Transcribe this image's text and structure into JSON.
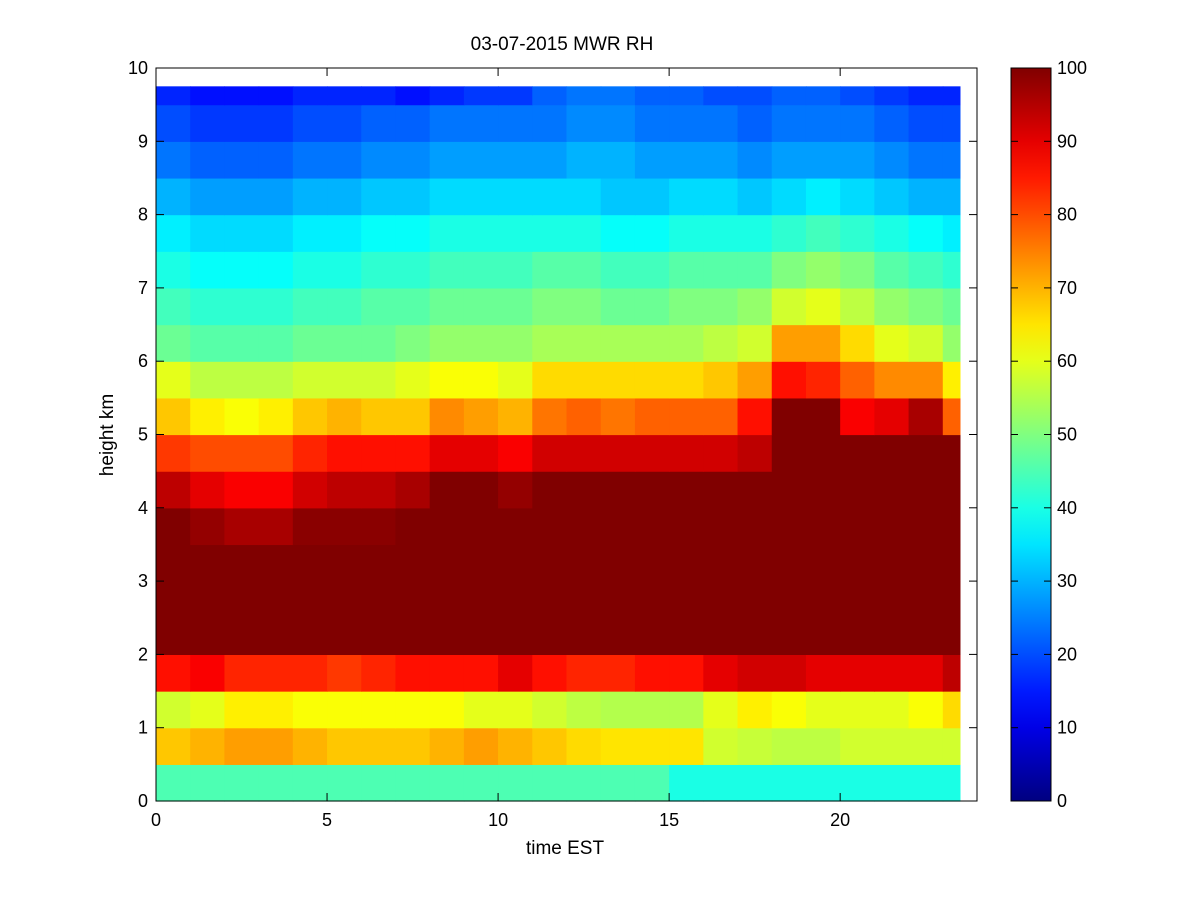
{
  "chart_data": {
    "type": "heatmap",
    "title": "03-07-2015 MWR RH",
    "xlabel": "time EST",
    "ylabel": "height km",
    "xlim": [
      0,
      24
    ],
    "ylim": [
      0,
      10
    ],
    "x_ticks": [
      0,
      5,
      10,
      15,
      20
    ],
    "y_ticks": [
      0,
      1,
      2,
      3,
      4,
      5,
      6,
      7,
      8,
      9,
      10
    ],
    "colorbar": {
      "colormap": "jet",
      "range": [
        0,
        100
      ],
      "ticks": [
        0,
        10,
        20,
        30,
        40,
        50,
        60,
        70,
        80,
        90,
        100
      ]
    },
    "x_extent": [
      0,
      23.5
    ],
    "y_extent": [
      0,
      9.75
    ],
    "x": [
      0,
      1,
      2,
      3,
      4,
      5,
      6,
      7,
      8,
      9,
      10,
      11,
      12,
      13,
      14,
      15,
      16,
      17,
      18,
      19,
      20,
      21,
      22,
      23
    ],
    "heights": [
      0.0,
      0.5,
      1.0,
      1.5,
      2.0,
      2.5,
      3.0,
      3.5,
      4.0,
      4.5,
      5.0,
      5.5,
      6.0,
      6.5,
      7.0,
      7.5,
      8.0,
      8.5,
      9.0,
      9.5
    ],
    "z": [
      [
        45,
        45,
        45,
        45,
        45,
        45,
        45,
        45,
        45,
        45,
        45,
        45,
        45,
        45,
        45,
        40,
        40,
        40,
        40,
        40,
        40,
        40,
        40,
        40
      ],
      [
        68,
        70,
        72,
        72,
        70,
        68,
        68,
        68,
        70,
        72,
        70,
        68,
        66,
        65,
        65,
        65,
        58,
        57,
        56,
        56,
        58,
        58,
        58,
        58
      ],
      [
        58,
        60,
        64,
        64,
        62,
        62,
        62,
        62,
        62,
        60,
        60,
        58,
        56,
        55,
        55,
        55,
        60,
        64,
        62,
        60,
        60,
        60,
        62,
        66
      ],
      [
        86,
        88,
        84,
        84,
        84,
        82,
        84,
        86,
        86,
        86,
        90,
        86,
        84,
        84,
        86,
        86,
        90,
        92,
        92,
        90,
        90,
        90,
        90,
        94
      ],
      [
        100,
        100,
        100,
        100,
        100,
        100,
        100,
        100,
        100,
        100,
        100,
        100,
        100,
        100,
        100,
        100,
        100,
        100,
        100,
        100,
        100,
        100,
        100,
        100
      ],
      [
        100,
        100,
        100,
        100,
        100,
        100,
        100,
        100,
        100,
        100,
        100,
        100,
        100,
        100,
        100,
        100,
        100,
        100,
        100,
        100,
        100,
        100,
        100,
        100
      ],
      [
        100,
        100,
        100,
        100,
        100,
        100,
        100,
        100,
        100,
        100,
        100,
        100,
        100,
        100,
        100,
        100,
        100,
        100,
        100,
        100,
        100,
        100,
        100,
        100
      ],
      [
        100,
        98,
        96,
        96,
        99,
        99,
        99,
        100,
        100,
        100,
        100,
        100,
        100,
        100,
        100,
        100,
        100,
        100,
        100,
        100,
        100,
        100,
        100,
        100
      ],
      [
        94,
        90,
        88,
        88,
        92,
        94,
        94,
        96,
        100,
        100,
        98,
        100,
        100,
        100,
        100,
        100,
        100,
        100,
        100,
        100,
        100,
        100,
        100,
        100
      ],
      [
        82,
        80,
        80,
        80,
        84,
        86,
        86,
        86,
        90,
        90,
        88,
        92,
        92,
        92,
        92,
        92,
        92,
        94,
        100,
        100,
        100,
        100,
        100,
        100
      ],
      [
        68,
        64,
        62,
        64,
        68,
        70,
        68,
        68,
        74,
        72,
        70,
        76,
        78,
        76,
        78,
        78,
        78,
        86,
        100,
        100,
        88,
        90,
        96,
        78
      ],
      [
        60,
        56,
        56,
        56,
        58,
        58,
        58,
        60,
        62,
        62,
        60,
        66,
        66,
        66,
        66,
        66,
        68,
        72,
        86,
        84,
        78,
        74,
        74,
        64
      ],
      [
        48,
        46,
        46,
        46,
        48,
        48,
        48,
        50,
        52,
        52,
        52,
        54,
        54,
        54,
        54,
        54,
        56,
        58,
        72,
        72,
        66,
        60,
        58,
        52
      ],
      [
        44,
        42,
        42,
        42,
        44,
        44,
        46,
        46,
        48,
        48,
        48,
        50,
        50,
        48,
        48,
        50,
        50,
        52,
        58,
        60,
        56,
        52,
        50,
        48
      ],
      [
        40,
        38,
        38,
        38,
        40,
        40,
        42,
        42,
        44,
        44,
        44,
        46,
        46,
        44,
        44,
        46,
        46,
        46,
        50,
        52,
        50,
        46,
        44,
        42
      ],
      [
        36,
        34,
        34,
        34,
        36,
        36,
        38,
        38,
        40,
        40,
        40,
        40,
        40,
        38,
        38,
        40,
        40,
        40,
        42,
        44,
        42,
        40,
        38,
        36
      ],
      [
        30,
        28,
        28,
        28,
        30,
        30,
        32,
        32,
        34,
        34,
        34,
        34,
        34,
        32,
        32,
        34,
        34,
        32,
        34,
        36,
        34,
        32,
        30,
        30
      ],
      [
        24,
        22,
        22,
        22,
        24,
        24,
        26,
        26,
        28,
        28,
        28,
        28,
        30,
        30,
        28,
        28,
        28,
        26,
        28,
        28,
        28,
        26,
        24,
        24
      ],
      [
        20,
        18,
        18,
        18,
        20,
        20,
        22,
        22,
        24,
        24,
        24,
        24,
        26,
        26,
        24,
        24,
        24,
        22,
        24,
        24,
        24,
        22,
        20,
        20
      ],
      [
        16,
        14,
        14,
        14,
        16,
        16,
        16,
        14,
        16,
        18,
        18,
        22,
        24,
        24,
        22,
        22,
        20,
        20,
        22,
        22,
        20,
        18,
        16,
        16
      ]
    ]
  }
}
